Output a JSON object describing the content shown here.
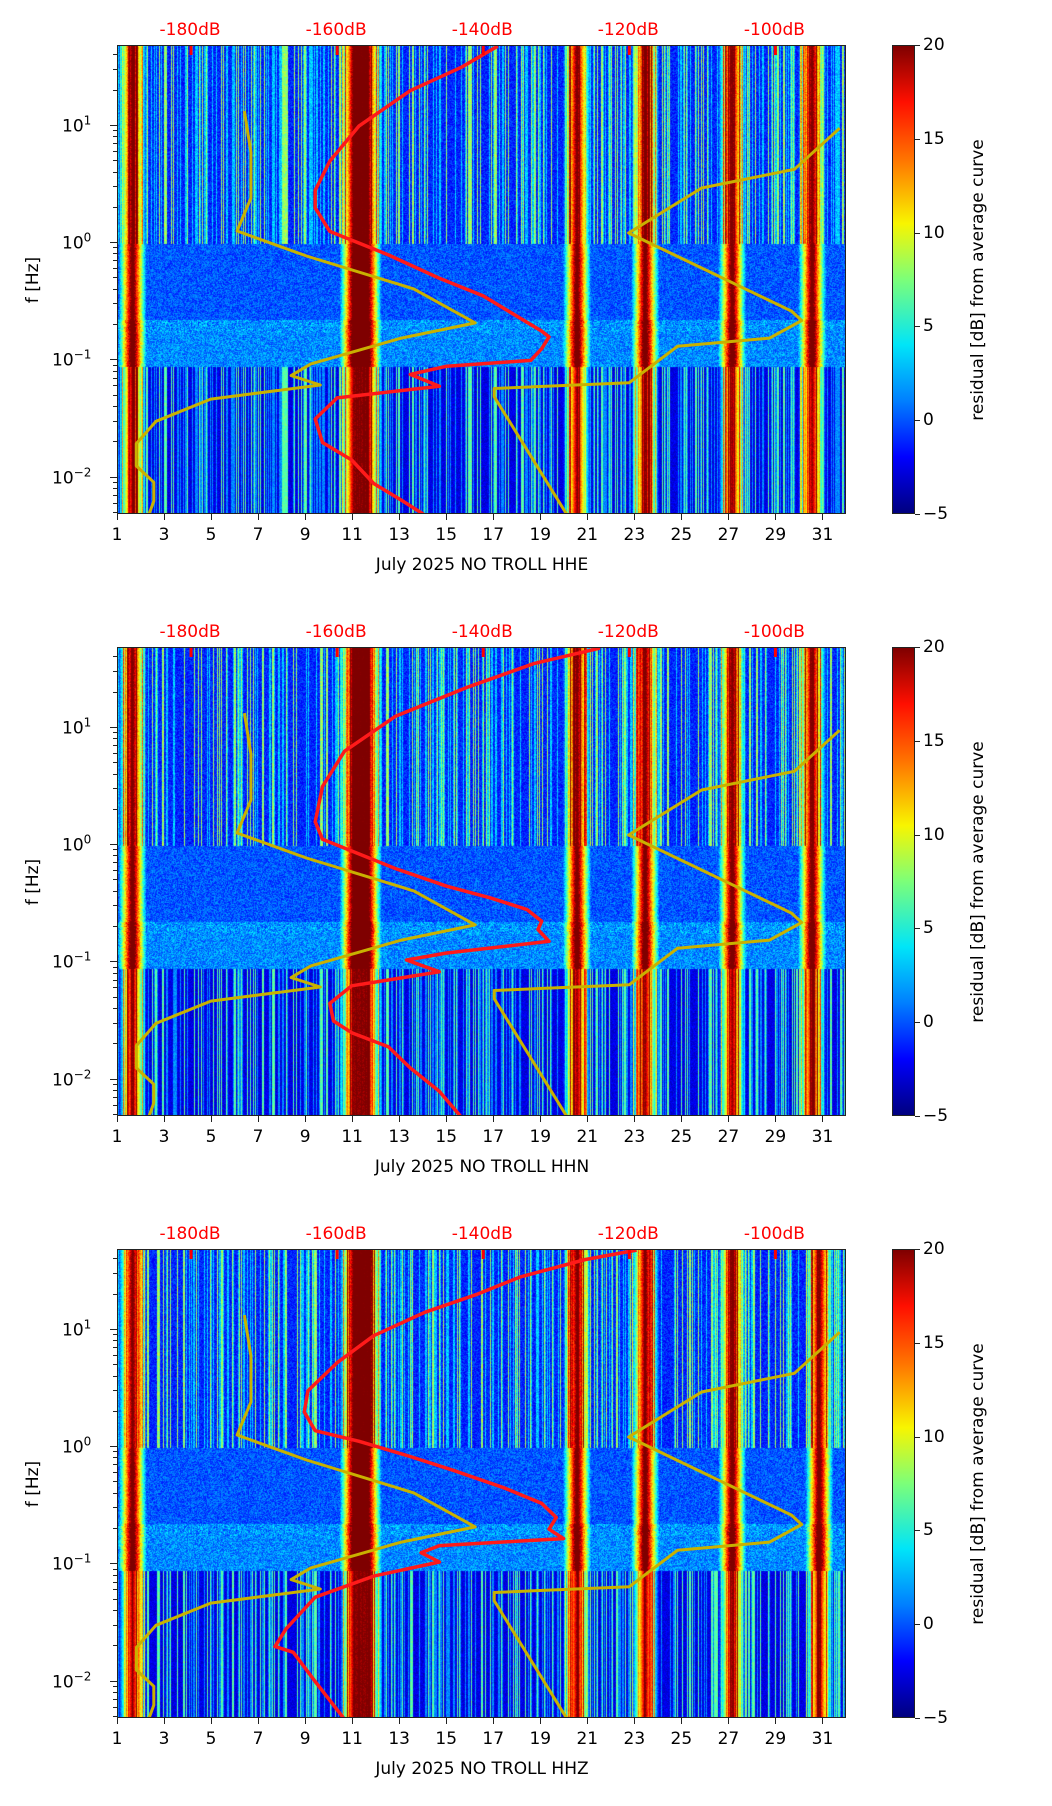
{
  "chart_data": [
    {
      "type": "heatmap",
      "title": "",
      "xlabel": "July 2025 NO TROLL  HHE",
      "ylabel": "f [Hz]",
      "component": "HHE",
      "x_ticks": [
        "1",
        "3",
        "5",
        "7",
        "9",
        "11",
        "13",
        "15",
        "17",
        "19",
        "21",
        "23",
        "25",
        "27",
        "29",
        "31"
      ],
      "x_tick_values": [
        1,
        3,
        5,
        7,
        9,
        11,
        13,
        15,
        17,
        19,
        21,
        23,
        25,
        27,
        29,
        31
      ],
      "xlim": [
        1,
        32
      ],
      "y_scale": "log",
      "y_ticks": [
        "10^1",
        "10^0",
        "10^-1",
        "10^-2"
      ],
      "ylim_hz": [
        0.0048,
        48
      ],
      "top_axis_labels": [
        "-180dB",
        "-160dB",
        "-140dB",
        "-120dB",
        "-100dB"
      ],
      "top_axis_values_db": [
        -180,
        -160,
        -140,
        -120,
        -100
      ],
      "top_axis_range_db": [
        -190,
        -90.2
      ],
      "colorbar": {
        "label": "residual [dB] from average curve",
        "ticks": [
          "20",
          "15",
          "10",
          "5",
          "0",
          "−5"
        ],
        "range": [
          -5,
          20
        ],
        "colormap": "jet"
      },
      "strong_bands_days": [
        1.6,
        11.0,
        11.6,
        20.5,
        23.4,
        27.1,
        30.5
      ],
      "series": [
        {
          "name": "average PSD",
          "color": "#ff1a1a",
          "points_db_logf": [
            [
              -138,
              1.68
            ],
            [
              -143,
              1.5
            ],
            [
              -150,
              1.3
            ],
            [
              -157,
              1.0
            ],
            [
              -161,
              0.7
            ],
            [
              -163,
              0.45
            ],
            [
              -163,
              0.3
            ],
            [
              -162.5,
              0.25
            ],
            [
              -161,
              0.1
            ],
            [
              -157,
              0.0
            ],
            [
              -153,
              -0.1
            ],
            [
              -146,
              -0.3
            ],
            [
              -140,
              -0.45
            ],
            [
              -136,
              -0.6
            ],
            [
              -132,
              -0.75
            ],
            [
              -131,
              -0.8
            ],
            [
              -132,
              -0.9
            ],
            [
              -133.5,
              -1.0
            ],
            [
              -145,
              -1.05
            ],
            [
              -150,
              -1.12
            ],
            [
              -146,
              -1.22
            ],
            [
              -160,
              -1.32
            ],
            [
              -163,
              -1.5
            ],
            [
              -162,
              -1.7
            ],
            [
              -158,
              -1.85
            ],
            [
              -155,
              -2.05
            ],
            [
              -151,
              -2.2
            ],
            [
              -148,
              -2.32
            ]
          ]
        },
        {
          "name": "NLNM",
          "color": "#c9b100",
          "points_db_logf": [
            [
              -172.7,
              1.126
            ],
            [
              -171.8,
              0.776
            ],
            [
              -171.8,
              0.384
            ],
            [
              -173.7,
              0.103
            ],
            [
              -164.2,
              -0.11
            ],
            [
              -149.5,
              -0.39
            ],
            [
              -141.1,
              -0.68
            ],
            [
              -151.2,
              -0.81
            ],
            [
              -163.6,
              -1.03
            ],
            [
              -166.3,
              -1.13
            ],
            [
              -162.3,
              -1.21
            ],
            [
              -177.3,
              -1.33
            ],
            [
              -184.8,
              -1.52
            ],
            [
              -187.5,
              -1.71
            ],
            [
              -187.5,
              -1.9
            ],
            [
              -185.1,
              -2.04
            ],
            [
              -185.1,
              -2.2
            ],
            [
              -185.8,
              -2.32
            ]
          ]
        },
        {
          "name": "NHNM",
          "color": "#c9b100",
          "points_db_logf": [
            [
              -91.2,
              0.98
            ],
            [
              -97.4,
              0.63
            ],
            [
              -110.1,
              0.47
            ],
            [
              -120.1,
              0.086
            ],
            [
              -97.8,
              -0.58
            ],
            [
              -96.4,
              -0.66
            ],
            [
              -100.8,
              -0.81
            ],
            [
              -113.4,
              -0.88
            ],
            [
              -120,
              -1.19
            ],
            [
              -138.5,
              -1.24
            ],
            [
              -138.5,
              -1.31
            ],
            [
              -128.5,
              -2.32
            ]
          ]
        }
      ]
    },
    {
      "type": "heatmap",
      "title": "",
      "xlabel": "July 2025 NO TROLL  HHN",
      "ylabel": "f [Hz]",
      "component": "HHN",
      "x_ticks": [
        "1",
        "3",
        "5",
        "7",
        "9",
        "11",
        "13",
        "15",
        "17",
        "19",
        "21",
        "23",
        "25",
        "27",
        "29",
        "31"
      ],
      "x_tick_values": [
        1,
        3,
        5,
        7,
        9,
        11,
        13,
        15,
        17,
        19,
        21,
        23,
        25,
        27,
        29,
        31
      ],
      "xlim": [
        1,
        32
      ],
      "y_scale": "log",
      "y_ticks": [
        "10^1",
        "10^0",
        "10^-1",
        "10^-2"
      ],
      "ylim_hz": [
        0.0048,
        48
      ],
      "top_axis_labels": [
        "-180dB",
        "-160dB",
        "-140dB",
        "-120dB",
        "-100dB"
      ],
      "top_axis_values_db": [
        -180,
        -160,
        -140,
        -120,
        -100
      ],
      "top_axis_range_db": [
        -190,
        -90.2
      ],
      "colorbar": {
        "label": "residual [dB] from average curve",
        "ticks": [
          "20",
          "15",
          "10",
          "5",
          "0",
          "−5"
        ],
        "range": [
          -5,
          20
        ],
        "colormap": "jet"
      },
      "strong_bands_days": [
        1.6,
        11.0,
        11.6,
        20.5,
        23.4,
        27.1,
        30.5
      ],
      "series": [
        {
          "name": "average PSD",
          "color": "#ff1a1a",
          "points_db_logf": [
            [
              -124,
              1.68
            ],
            [
              -133,
              1.55
            ],
            [
              -142,
              1.35
            ],
            [
              -152,
              1.1
            ],
            [
              -159,
              0.8
            ],
            [
              -162,
              0.5
            ],
            [
              -163,
              0.2
            ],
            [
              -162,
              0.05
            ],
            [
              -158,
              -0.05
            ],
            [
              -152,
              -0.2
            ],
            [
              -145,
              -0.35
            ],
            [
              -139,
              -0.45
            ],
            [
              -134,
              -0.55
            ],
            [
              -132,
              -0.65
            ],
            [
              -132.5,
              -0.72
            ],
            [
              -131,
              -0.82
            ],
            [
              -145,
              -0.92
            ],
            [
              -150.5,
              -0.98
            ],
            [
              -146,
              -1.08
            ],
            [
              -158,
              -1.2
            ],
            [
              -161,
              -1.35
            ],
            [
              -160.5,
              -1.5
            ],
            [
              -158,
              -1.6
            ],
            [
              -153,
              -1.72
            ],
            [
              -150,
              -1.9
            ],
            [
              -146,
              -2.1
            ],
            [
              -143,
              -2.32
            ]
          ]
        },
        {
          "name": "NLNM",
          "color": "#c9b100",
          "points_db_logf": [
            [
              -172.7,
              1.126
            ],
            [
              -171.8,
              0.776
            ],
            [
              -171.8,
              0.384
            ],
            [
              -173.7,
              0.103
            ],
            [
              -164.2,
              -0.11
            ],
            [
              -149.5,
              -0.39
            ],
            [
              -141.1,
              -0.68
            ],
            [
              -151.2,
              -0.81
            ],
            [
              -163.6,
              -1.03
            ],
            [
              -166.3,
              -1.13
            ],
            [
              -162.3,
              -1.21
            ],
            [
              -177.3,
              -1.33
            ],
            [
              -184.8,
              -1.52
            ],
            [
              -187.5,
              -1.71
            ],
            [
              -187.5,
              -1.9
            ],
            [
              -185.1,
              -2.04
            ],
            [
              -185.1,
              -2.2
            ],
            [
              -185.8,
              -2.32
            ]
          ]
        },
        {
          "name": "NHNM",
          "color": "#c9b100",
          "points_db_logf": [
            [
              -91.2,
              0.98
            ],
            [
              -97.4,
              0.63
            ],
            [
              -110.1,
              0.47
            ],
            [
              -120.1,
              0.086
            ],
            [
              -97.8,
              -0.58
            ],
            [
              -96.4,
              -0.66
            ],
            [
              -100.8,
              -0.81
            ],
            [
              -113.4,
              -0.88
            ],
            [
              -120,
              -1.19
            ],
            [
              -138.5,
              -1.24
            ],
            [
              -138.5,
              -1.31
            ],
            [
              -128.5,
              -2.32
            ]
          ]
        }
      ]
    },
    {
      "type": "heatmap",
      "title": "",
      "xlabel": "July 2025 NO TROLL  HHZ",
      "ylabel": "f [Hz]",
      "component": "HHZ",
      "x_ticks": [
        "1",
        "3",
        "5",
        "7",
        "9",
        "11",
        "13",
        "15",
        "17",
        "19",
        "21",
        "23",
        "25",
        "27",
        "29",
        "31"
      ],
      "x_tick_values": [
        1,
        3,
        5,
        7,
        9,
        11,
        13,
        15,
        17,
        19,
        21,
        23,
        25,
        27,
        29,
        31
      ],
      "xlim": [
        1,
        32
      ],
      "y_scale": "log",
      "y_ticks": [
        "10^1",
        "10^0",
        "10^-1",
        "10^-2"
      ],
      "ylim_hz": [
        0.0048,
        48
      ],
      "top_axis_labels": [
        "-180dB",
        "-160dB",
        "-140dB",
        "-120dB",
        "-100dB"
      ],
      "top_axis_values_db": [
        -180,
        -160,
        -140,
        -120,
        -100
      ],
      "top_axis_range_db": [
        -190,
        -90.2
      ],
      "colorbar": {
        "label": "residual [dB] from average curve",
        "ticks": [
          "20",
          "15",
          "10",
          "5",
          "0",
          "−5"
        ],
        "range": [
          -5,
          20
        ],
        "colormap": "jet"
      },
      "strong_bands_days": [
        1.6,
        11.0,
        11.6,
        20.5,
        23.4,
        27.1,
        30.8
      ],
      "series": [
        {
          "name": "average PSD",
          "color": "#ff1a1a",
          "points_db_logf": [
            [
              -119,
              1.68
            ],
            [
              -126,
              1.6
            ],
            [
              -135,
              1.45
            ],
            [
              -141,
              1.3
            ],
            [
              -148,
              1.15
            ],
            [
              -155,
              0.95
            ],
            [
              -160,
              0.72
            ],
            [
              -164,
              0.48
            ],
            [
              -164.5,
              0.3
            ],
            [
              -163,
              0.14
            ],
            [
              -157,
              0.05
            ],
            [
              -150,
              -0.08
            ],
            [
              -144,
              -0.2
            ],
            [
              -137,
              -0.35
            ],
            [
              -132,
              -0.48
            ],
            [
              -130,
              -0.6
            ],
            [
              -131,
              -0.7
            ],
            [
              -129,
              -0.78
            ],
            [
              -146,
              -0.84
            ],
            [
              -148.5,
              -0.9
            ],
            [
              -146,
              -0.98
            ],
            [
              -155,
              -1.1
            ],
            [
              -163,
              -1.28
            ],
            [
              -167,
              -1.55
            ],
            [
              -168.5,
              -1.7
            ],
            [
              -166,
              -1.75
            ],
            [
              -163,
              -2.0
            ],
            [
              -159,
              -2.32
            ]
          ]
        },
        {
          "name": "NLNM",
          "color": "#c9b100",
          "points_db_logf": [
            [
              -172.7,
              1.126
            ],
            [
              -171.8,
              0.776
            ],
            [
              -171.8,
              0.384
            ],
            [
              -173.7,
              0.103
            ],
            [
              -164.2,
              -0.11
            ],
            [
              -149.5,
              -0.39
            ],
            [
              -141.1,
              -0.68
            ],
            [
              -151.2,
              -0.81
            ],
            [
              -163.6,
              -1.03
            ],
            [
              -166.3,
              -1.13
            ],
            [
              -162.3,
              -1.21
            ],
            [
              -177.3,
              -1.33
            ],
            [
              -184.8,
              -1.52
            ],
            [
              -187.5,
              -1.71
            ],
            [
              -187.5,
              -1.9
            ],
            [
              -185.1,
              -2.04
            ],
            [
              -185.1,
              -2.2
            ],
            [
              -185.8,
              -2.32
            ]
          ]
        },
        {
          "name": "NHNM",
          "color": "#c9b100",
          "points_db_logf": [
            [
              -91.2,
              0.98
            ],
            [
              -97.4,
              0.63
            ],
            [
              -110.1,
              0.47
            ],
            [
              -120.1,
              0.086
            ],
            [
              -97.8,
              -0.58
            ],
            [
              -96.4,
              -0.66
            ],
            [
              -100.8,
              -0.81
            ],
            [
              -113.4,
              -0.88
            ],
            [
              -120,
              -1.19
            ],
            [
              -138.5,
              -1.24
            ],
            [
              -138.5,
              -1.31
            ],
            [
              -128.5,
              -2.32
            ]
          ]
        }
      ]
    }
  ]
}
